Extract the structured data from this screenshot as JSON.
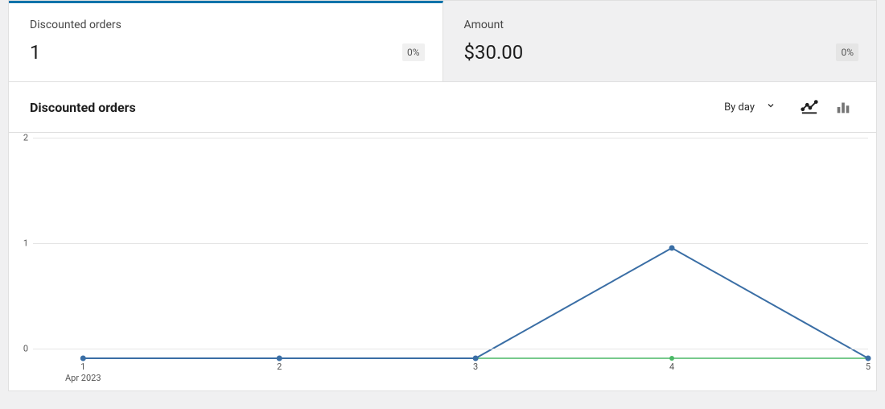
{
  "tabs": [
    {
      "label": "Discounted orders",
      "value": "1",
      "pct": "0%",
      "active": true
    },
    {
      "label": "Amount",
      "value": "$30.00",
      "pct": "0%",
      "active": false
    }
  ],
  "chart": {
    "title": "Discounted orders",
    "interval_label": "By day",
    "view": "line",
    "type": "line",
    "x_categories": [
      "1",
      "2",
      "3",
      "4",
      "5"
    ],
    "x_sublabel": "Apr 2023",
    "x_sublabel_at_index": 0,
    "y_ticks": [
      0,
      1,
      2
    ],
    "ylim": [
      0,
      2
    ],
    "grid_color": "#e5e5e5",
    "background_color": "#ffffff",
    "axis_font_size": 11,
    "series": [
      {
        "name": "current",
        "values": [
          0,
          0,
          0,
          1,
          0
        ],
        "color": "#3a6ea5",
        "line_width": 2,
        "marker_radius": 3.5,
        "marker_style": "circle"
      },
      {
        "name": "previous",
        "values": [
          0,
          0,
          0,
          0,
          0
        ],
        "color": "#4ab866",
        "line_width": 1.5,
        "marker_radius": 3,
        "marker_style": "circle"
      }
    ]
  }
}
